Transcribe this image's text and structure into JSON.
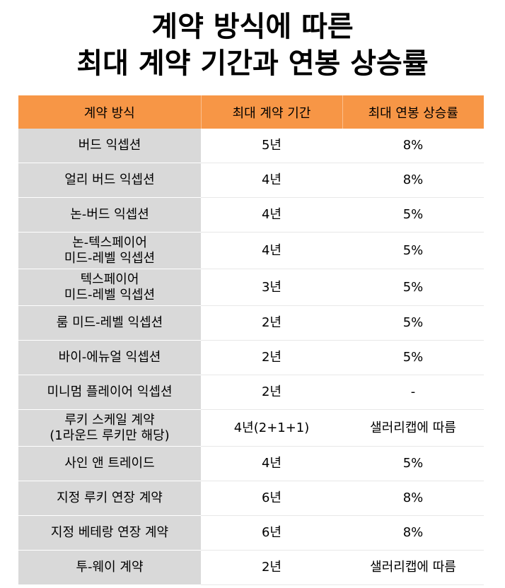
{
  "title": {
    "line1": "계약 방식에 따른",
    "line2": "최대 계약 기간과 연봉 상승률"
  },
  "table": {
    "headers": [
      "계약 방식",
      "최대 계약 기간",
      "최대 연봉 상승률"
    ],
    "rows": [
      {
        "method": [
          "버드 익셉션"
        ],
        "period": "5년",
        "raise": "8%"
      },
      {
        "method": [
          "얼리 버드 익셉션"
        ],
        "period": "4년",
        "raise": "8%"
      },
      {
        "method": [
          "논-버드 익셉션"
        ],
        "period": "4년",
        "raise": "5%"
      },
      {
        "method": [
          "논-텍스페이어",
          "미드-레벨 익셉션"
        ],
        "period": "4년",
        "raise": "5%"
      },
      {
        "method": [
          "텍스페이어",
          "미드-레벨 익셉션"
        ],
        "period": "3년",
        "raise": "5%"
      },
      {
        "method": [
          "룸 미드-레벨 익셉션"
        ],
        "period": "2년",
        "raise": "5%"
      },
      {
        "method": [
          "바이-에뉴얼 익셉션"
        ],
        "period": "2년",
        "raise": "5%"
      },
      {
        "method": [
          "미니멈 플레이어 익셉션"
        ],
        "period": "2년",
        "raise": "-"
      },
      {
        "method": [
          "루키 스케일 계약",
          "(1라운드 루키만 해당)"
        ],
        "period": "4년(2+1+1)",
        "raise": "샐러리캡에 따름"
      },
      {
        "method": [
          "사인 앤 트레이드"
        ],
        "period": "4년",
        "raise": "5%"
      },
      {
        "method": [
          "지정 루키 연장 계약"
        ],
        "period": "6년",
        "raise": "8%"
      },
      {
        "method": [
          "지정 베테랑 연장 계약"
        ],
        "period": "6년",
        "raise": "8%"
      },
      {
        "method": [
          "투-웨이 계약"
        ],
        "period": "2년",
        "raise": "샐러리캡에 따름"
      }
    ]
  },
  "colors": {
    "header_bg": "#f79646",
    "method_col_bg": "#d9d9d9"
  }
}
